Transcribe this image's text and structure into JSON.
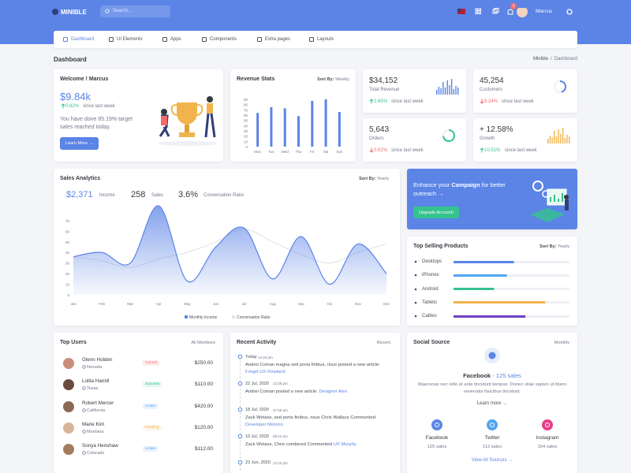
{
  "topbar": {
    "brand": "MINIBLE",
    "search_placeholder": "Search...",
    "notification_count": 3,
    "user": "Marcus"
  },
  "nav": [
    "Dashboard",
    "UI Elements",
    "Apps",
    "Components",
    "Extra pages",
    "Layouts"
  ],
  "page": {
    "title": "Dashboard",
    "breadcrumb": [
      "Minible",
      "Dashboard"
    ]
  },
  "welcome": {
    "title": "Welcome ! Marcus",
    "amount": "$9.84k",
    "change": "0.82%",
    "change_note": "since last week",
    "text": "You have done 85.19% target sales reached today.",
    "button": "Learn More →"
  },
  "revenue_stats": {
    "title": "Revenue Stats",
    "sort_label": "Sort By:",
    "sort_value": "Weekly",
    "chart": {
      "type": "bar",
      "categories": [
        "Mon",
        "Tue",
        "Wed",
        "Thu",
        "Fri",
        "Sat",
        "Sun"
      ],
      "values": [
        64,
        75,
        73,
        58,
        87,
        90,
        66
      ],
      "color": "#5b84e6",
      "ylim": [
        0,
        90
      ],
      "yticks": [
        0,
        10,
        20,
        30,
        40,
        50,
        60,
        70,
        80,
        90
      ]
    }
  },
  "stats": [
    {
      "value": "$34,152",
      "label": "Total Revenue",
      "change": "2.65%",
      "direction": "up",
      "note": "since last week"
    },
    {
      "value": "45,254",
      "label": "Customers",
      "change": "6.24%",
      "direction": "down",
      "note": "since last week"
    },
    {
      "value": "5,643",
      "label": "Orders",
      "change": "0.82%",
      "direction": "down",
      "note": "since last week"
    },
    {
      "value": "+ 12.58%",
      "label": "Growth",
      "change": "10.51%",
      "direction": "up",
      "note": "since last week"
    }
  ],
  "sales_analytics": {
    "title": "Sales Analytics",
    "sort_label": "Sort By:",
    "sort_value": "Yearly",
    "summary": [
      {
        "value": "$2,371",
        "label": "Income"
      },
      {
        "value": "258",
        "label": "Sales"
      },
      {
        "value": "3.6%",
        "label": "Conversation Ratio"
      }
    ],
    "chart": {
      "type": "area",
      "categories": [
        "Jan",
        "Feb",
        "Mar",
        "Apr",
        "May",
        "Jun",
        "Jul",
        "Aug",
        "Sep",
        "Oct",
        "Nov",
        "Dec"
      ],
      "series": [
        {
          "name": "Monthly Income",
          "color": "#5b84e6",
          "values": [
            36,
            40,
            30,
            84,
            13,
            45,
            63,
            15,
            55,
            10,
            48,
            20
          ]
        },
        {
          "name": "Conversation Ratio",
          "color": "#dfe2e8",
          "values": [
            36,
            32,
            26,
            34,
            40,
            50,
            62,
            50,
            38,
            30,
            40,
            48
          ]
        }
      ],
      "ylim": [
        0,
        90
      ],
      "yticks": [
        0,
        10,
        20,
        30,
        40,
        50,
        60,
        70
      ],
      "legend": "bottom"
    }
  },
  "promo": {
    "text_before": "Enhance your",
    "highlight": "Campaign",
    "text_after": "for better outreach →",
    "button": "Upgrade Account!"
  },
  "top_selling": {
    "title": "Top Selling Products",
    "sort_label": "Sort By:",
    "sort_value": "Yearly",
    "products": [
      {
        "name": "Desktops",
        "value": 52,
        "color": "#5b84e6"
      },
      {
        "name": "iPhones",
        "value": 46,
        "color": "#50a5f1"
      },
      {
        "name": "Android",
        "value": 35,
        "color": "#34c38f"
      },
      {
        "name": "Tablets",
        "value": 79,
        "color": "#f1b44c"
      },
      {
        "name": "Cables",
        "value": 62,
        "color": "#6f42c1"
      }
    ],
    "max": 100
  },
  "top_users": {
    "title": "Top Users",
    "filter": "All Members",
    "users": [
      {
        "name": "Glenn Holden",
        "location": "Nevada",
        "status": "Cancel",
        "status_color": "#f46a6a",
        "amount": "$250.00"
      },
      {
        "name": "Lolita Hamill",
        "location": "Texas",
        "status": "Success",
        "status_color": "#34c38f",
        "amount": "$110.00"
      },
      {
        "name": "Robert Mercer",
        "location": "California",
        "status": "Active",
        "status_color": "#50a5f1",
        "amount": "$420.00"
      },
      {
        "name": "Marie Kim",
        "location": "Montana",
        "status": "Pending",
        "status_color": "#f1b44c",
        "amount": "$120.00"
      },
      {
        "name": "Sonya Henshaw",
        "location": "Colorado",
        "status": "Active",
        "status_color": "#50a5f1",
        "amount": "$112.00"
      }
    ]
  },
  "recent_activity": {
    "title": "Recent Activity",
    "filter": "Recent",
    "items": [
      {
        "date": "Today",
        "time": "12:20 pm",
        "text": "Andrei Coman magna sed porta finibus, risus posted a new article:",
        "link": "Forget UX Rowland"
      },
      {
        "date": "22 Jul, 2020",
        "time": "12:36 pm",
        "text": "Andrei Coman posted a new article:",
        "link": "Designer Alex"
      },
      {
        "date": "18 Jul, 2020",
        "time": "07:56 am",
        "text": "Zack Wetass, sed porta finibus, risus Chris Wallace Commented",
        "link": "Developer Moreno"
      },
      {
        "date": "10 Jul, 2020",
        "time": "08:42 pm",
        "text": "Zack Wetass, Chris combined Commented",
        "link": "UX Murphy"
      },
      {
        "date": "23 Jun, 2020",
        "time": "12:22 pm",
        "text": "",
        "link": ""
      }
    ]
  },
  "social_source": {
    "title": "Social Source",
    "filter": "Monthly",
    "heading_name": "Facebook",
    "heading_sales": "- 125 sales",
    "text": "Maecenas nec odio et ante tincidunt tempus. Donec vitae sapien ut libero venenatis faucibus tincidunt.",
    "learn_more": "Learn more →",
    "sources": [
      {
        "name": "Facebook",
        "sales": "125 sales",
        "color": "#5b84e6"
      },
      {
        "name": "Twitter",
        "sales": "112 sales",
        "color": "#50a5f1"
      },
      {
        "name": "Instagram",
        "sales": "104 sales",
        "color": "#e83e8c"
      }
    ],
    "view_all": "View All Sources →"
  }
}
